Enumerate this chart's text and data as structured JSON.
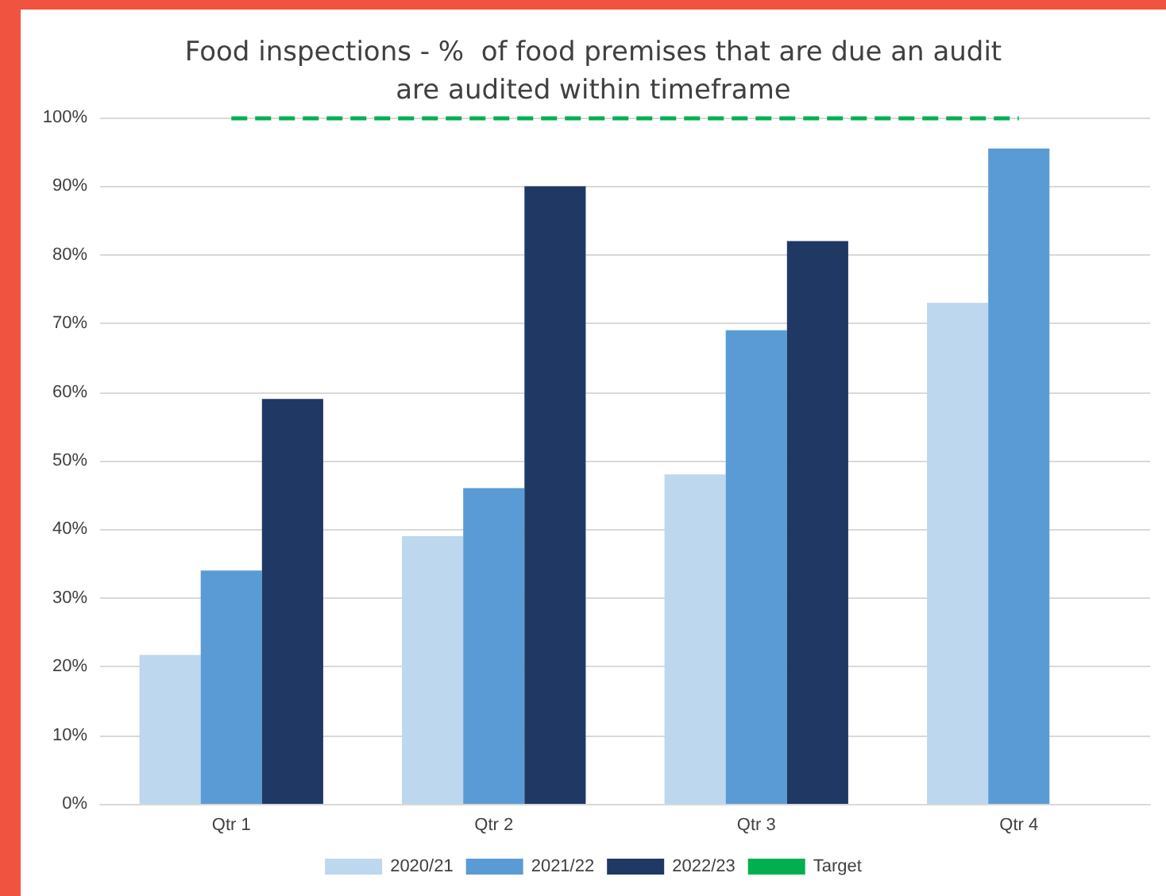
{
  "chart_data": {
    "type": "bar",
    "title": "Food inspections - %  of food premises that are due an audit\nare audited within timeframe",
    "categories": [
      "Qtr 1",
      "Qtr 2",
      "Qtr 3",
      "Qtr 4"
    ],
    "series": [
      {
        "name": "2020/21",
        "color": "#bdd7ee",
        "values": [
          21.7,
          39,
          48,
          73
        ]
      },
      {
        "name": "2021/22",
        "color": "#5b9bd5",
        "values": [
          34,
          46,
          69,
          95.5
        ]
      },
      {
        "name": "2022/23",
        "color": "#203864",
        "values": [
          59,
          90,
          82,
          null
        ]
      }
    ],
    "ylim": [
      0,
      100
    ],
    "yticks": [
      {
        "value": 0,
        "label": "0%"
      },
      {
        "value": 10,
        "label": "10%"
      },
      {
        "value": 20,
        "label": "20%"
      },
      {
        "value": 30,
        "label": "30%"
      },
      {
        "value": 40,
        "label": "40%"
      },
      {
        "value": 50,
        "label": "50%"
      },
      {
        "value": 60,
        "label": "60%"
      },
      {
        "value": 70,
        "label": "70%"
      },
      {
        "value": 80,
        "label": "80%"
      },
      {
        "value": 90,
        "label": "90%"
      },
      {
        "value": 100,
        "label": "100%"
      }
    ],
    "ref_lines": [
      {
        "axis": "y",
        "value": 100,
        "label": "Target",
        "color": "#00b050",
        "line_style": "dashed"
      }
    ],
    "grid": "y",
    "legend": "bottom"
  }
}
